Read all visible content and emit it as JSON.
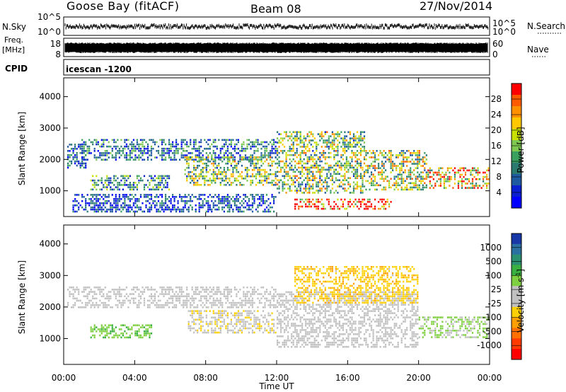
{
  "header": {
    "station": "Goose Bay (fitACF)",
    "beam": "Beam 08",
    "date": "27/Nov/2014"
  },
  "strips": {
    "nsky_label": "N.Sky",
    "nsky_ticks": [
      "10^5",
      "10^0"
    ],
    "nsearch_label": "N.Search",
    "nsearch_ticks": [
      "10^5",
      "10^0"
    ],
    "freq_label": "Freq.",
    "freq_unit": "[MHz]",
    "freq_ticks": [
      "18",
      "8"
    ],
    "nave_label": "Nave",
    "nave_ticks": [
      "60",
      "0"
    ],
    "cpid_label": "CPID",
    "cpid_value": "icescan -1200"
  },
  "colorbars": {
    "power": {
      "label": "Power [dB]",
      "ticks": [
        "28",
        "24",
        "20",
        "16",
        "12",
        "8",
        "4"
      ],
      "colors": [
        "#ff0000",
        "#ff5a00",
        "#ff9000",
        "#ffc800",
        "#c8e000",
        "#7ec850",
        "#3aa060",
        "#2a7a70",
        "#1e5aa0",
        "#0a20d0",
        "#0000ff"
      ]
    },
    "velocity": {
      "label": "Velocity [m s",
      "label_sup": "-1",
      "label_end": "]",
      "ticks": [
        "1000",
        "500",
        "100",
        "25",
        "-25",
        "-100",
        "-500",
        "-1000"
      ],
      "colors": [
        "#1838a8",
        "#2a70a0",
        "#2a9070",
        "#3ab040",
        "#7fd040",
        "#c0c0c0",
        "#c0c0c0",
        "#ffd000",
        "#ffa000",
        "#ff7000",
        "#ff3a00",
        "#ff0000"
      ]
    }
  },
  "chart_data": [
    {
      "type": "heatmap",
      "title": "Power",
      "ylabel": "Slant Range [km]",
      "xlabel": "Time UT",
      "x_ticks": [
        "00:00",
        "04:00",
        "08:00",
        "12:00",
        "16:00",
        "20:00",
        "00:00"
      ],
      "y_ticks": [
        "1000",
        "2000",
        "3000",
        "4000"
      ],
      "xlim": [
        0,
        24
      ],
      "ylim": [
        180,
        4600
      ],
      "regions": [
        {
          "start": 0.2,
          "end": 1.3,
          "range": [
            1700,
            2500
          ],
          "value": 6
        },
        {
          "start": 1.0,
          "end": 12.0,
          "range": [
            1950,
            2650
          ],
          "value": 8
        },
        {
          "start": 1.5,
          "end": 6.0,
          "range": [
            1000,
            1500
          ],
          "value": 10
        },
        {
          "start": 0.5,
          "end": 12.0,
          "range": [
            300,
            900
          ],
          "value": 5
        },
        {
          "start": 6.8,
          "end": 12.0,
          "range": [
            1150,
            2100
          ],
          "value": 15
        },
        {
          "start": 12.0,
          "end": 17.0,
          "range": [
            900,
            2900
          ],
          "value": 15
        },
        {
          "start": 17.0,
          "end": 20.5,
          "range": [
            1000,
            2300
          ],
          "value": 16
        },
        {
          "start": 13.0,
          "end": 18.5,
          "range": [
            380,
            750
          ],
          "value": 29
        },
        {
          "start": 20.5,
          "end": 24.0,
          "range": [
            1050,
            1750
          ],
          "value": 22
        }
      ]
    },
    {
      "type": "heatmap",
      "title": "Velocity",
      "ylabel": "Slant Range [km]",
      "xlabel": "Time UT",
      "x_ticks": [
        "00:00",
        "04:00",
        "08:00",
        "12:00",
        "16:00",
        "20:00",
        "00:00"
      ],
      "y_ticks": [
        "1000",
        "2000",
        "3000",
        "4000"
      ],
      "xlim": [
        0,
        24
      ],
      "ylim": [
        180,
        4600
      ],
      "regions": [
        {
          "start": 0.2,
          "end": 12.0,
          "range": [
            1950,
            2650
          ],
          "value": 0
        },
        {
          "start": 1.5,
          "end": 5.0,
          "range": [
            1000,
            1450
          ],
          "value": 300
        },
        {
          "start": 7.0,
          "end": 12.0,
          "range": [
            1150,
            1900
          ],
          "value": -150
        },
        {
          "start": 12.0,
          "end": 20.0,
          "range": [
            700,
            2500
          ],
          "value": 0
        },
        {
          "start": 13.0,
          "end": 20.0,
          "range": [
            2100,
            3300
          ],
          "value": -300
        },
        {
          "start": 20.0,
          "end": 24.0,
          "range": [
            1000,
            1700
          ],
          "value": 200
        }
      ]
    }
  ]
}
